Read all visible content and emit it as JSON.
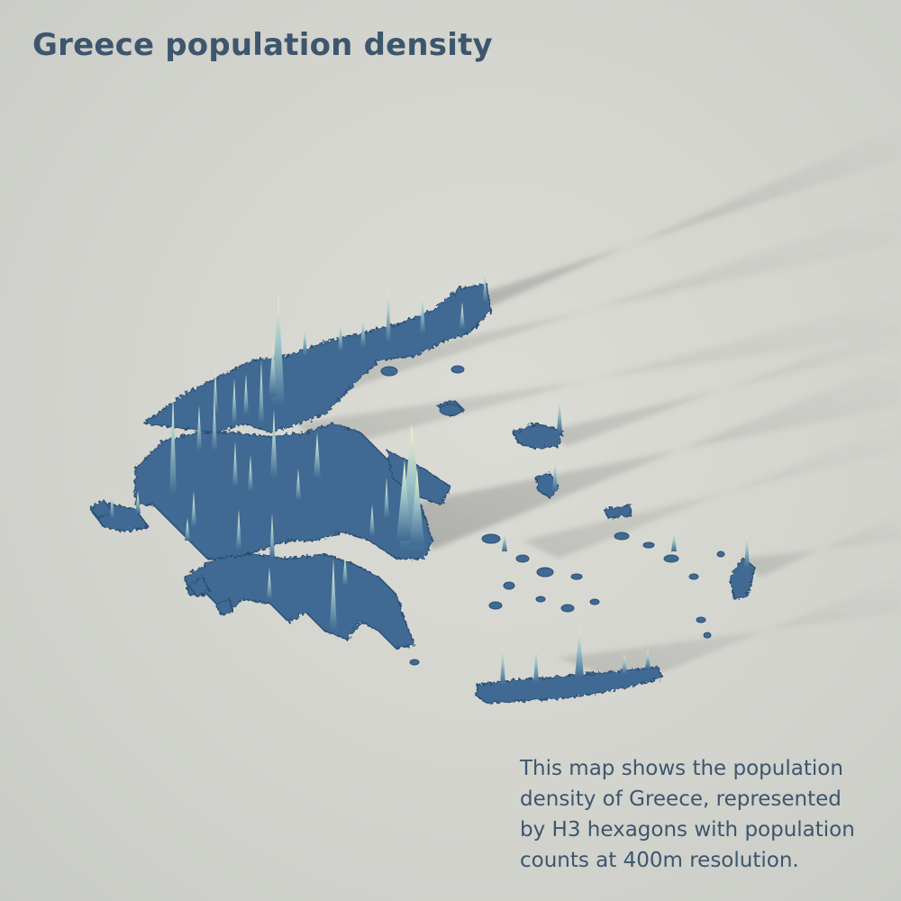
{
  "title": "Greece population density",
  "description_lines": [
    "This map shows the population",
    "density of Greece, represented",
    "by H3 hexagons with population",
    "counts at 400m resolution."
  ],
  "colors": {
    "background": "#d4d5cf",
    "text": "#3d566d",
    "land": "#3f6a93",
    "land_dark": "#2c4f73",
    "spike_low": "#3f6a93",
    "spike_high": "#f4f1c6",
    "shadow": "#8d8f8b"
  },
  "map": {
    "type": "3d-population-density-spikes",
    "region": "Greece",
    "resolution": "400m",
    "grid": "H3 hexagons"
  }
}
